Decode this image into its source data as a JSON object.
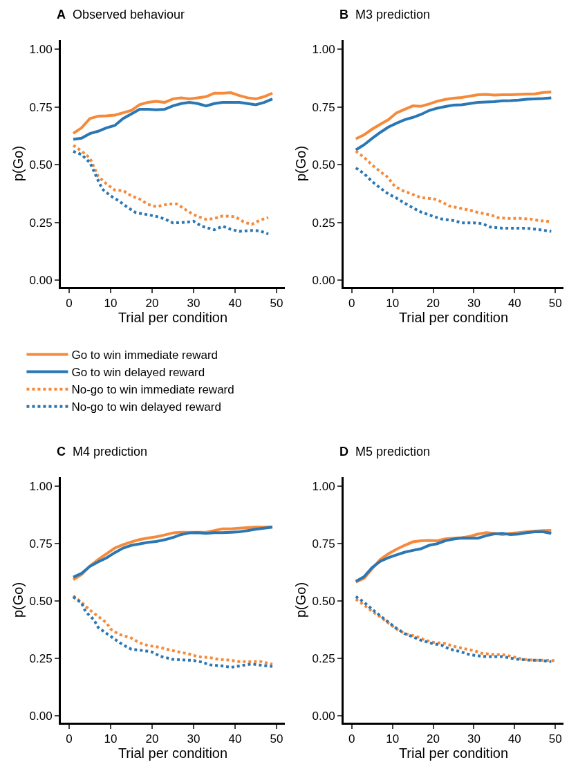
{
  "chart_data": [
    {
      "type": "line",
      "title": "A  Observed behaviour",
      "xlabel": "Trial per condition",
      "ylabel": "p(Go)",
      "xlim": [
        -2,
        52
      ],
      "ylim": [
        -0.03,
        1.04
      ],
      "xticks": [
        0,
        10,
        20,
        30,
        40,
        50
      ],
      "yticks": [
        {
          "value": 0,
          "label": "0.00"
        },
        {
          "value": 0.25,
          "label": "0.25"
        },
        {
          "value": 0.5,
          "label": "0.50"
        },
        {
          "value": 0.75,
          "label": "0.75"
        },
        {
          "value": 1,
          "label": "1.00"
        }
      ],
      "legend": "bottom",
      "marker": "none",
      "series": [
        {
          "name": "Go to win immediate reward",
          "color": "#f58a3a",
          "line_style": "solid",
          "x": [
            1,
            3,
            5,
            7,
            9,
            11,
            13,
            15,
            17,
            19,
            21,
            23,
            25,
            27,
            29,
            31,
            33,
            35,
            37,
            39,
            41,
            43,
            45,
            47,
            49
          ],
          "values": [
            0.636,
            0.66,
            0.7,
            0.71,
            0.712,
            0.715,
            0.725,
            0.735,
            0.76,
            0.77,
            0.775,
            0.77,
            0.785,
            0.79,
            0.785,
            0.79,
            0.795,
            0.81,
            0.81,
            0.812,
            0.8,
            0.79,
            0.785,
            0.795,
            0.81
          ]
        },
        {
          "name": "Go to win delayed reward",
          "color": "#2a77b4",
          "line_style": "solid",
          "x": [
            1,
            3,
            5,
            7,
            9,
            11,
            13,
            15,
            17,
            19,
            21,
            23,
            25,
            27,
            29,
            31,
            33,
            35,
            37,
            39,
            41,
            43,
            45,
            47,
            49
          ],
          "values": [
            0.61,
            0.615,
            0.635,
            0.645,
            0.66,
            0.67,
            0.7,
            0.72,
            0.74,
            0.74,
            0.738,
            0.74,
            0.755,
            0.765,
            0.77,
            0.765,
            0.755,
            0.765,
            0.77,
            0.77,
            0.77,
            0.765,
            0.76,
            0.77,
            0.785
          ]
        },
        {
          "name": "No-go to win immediate reward",
          "color": "#f58a3a",
          "line_style": "dotted",
          "x": [
            1,
            3,
            5,
            6,
            7,
            9,
            11,
            13,
            15,
            17,
            19,
            21,
            24,
            26,
            28,
            30,
            33,
            35,
            37,
            40,
            42,
            44,
            46,
            48
          ],
          "values": [
            0.584,
            0.559,
            0.529,
            0.489,
            0.449,
            0.417,
            0.39,
            0.388,
            0.365,
            0.351,
            0.328,
            0.318,
            0.33,
            0.33,
            0.306,
            0.283,
            0.263,
            0.267,
            0.278,
            0.275,
            0.253,
            0.241,
            0.26,
            0.271
          ]
        },
        {
          "name": "No-go to win delayed reward",
          "color": "#2a77b4",
          "line_style": "dotted",
          "x": [
            1,
            3,
            5,
            6,
            7,
            8,
            10,
            12,
            14,
            16,
            19,
            21,
            23,
            25,
            28,
            30,
            32,
            35,
            37,
            39,
            41,
            44,
            46,
            48
          ],
          "values": [
            0.558,
            0.544,
            0.509,
            0.471,
            0.431,
            0.394,
            0.365,
            0.343,
            0.316,
            0.293,
            0.283,
            0.276,
            0.265,
            0.248,
            0.25,
            0.255,
            0.233,
            0.218,
            0.233,
            0.22,
            0.211,
            0.215,
            0.213,
            0.2
          ]
        }
      ]
    },
    {
      "type": "line",
      "title": "B  M3 prediction",
      "xlabel": "Trial per condition",
      "ylabel": "p(Go)",
      "xlim": [
        -2,
        52
      ],
      "ylim": [
        -0.03,
        1.04
      ],
      "xticks": [
        0,
        10,
        20,
        30,
        40,
        50
      ],
      "yticks": [
        {
          "value": 0,
          "label": "0.00"
        },
        {
          "value": 0.25,
          "label": "0.25"
        },
        {
          "value": 0.5,
          "label": "0.50"
        },
        {
          "value": 0.75,
          "label": "0.75"
        },
        {
          "value": 1,
          "label": "1.00"
        }
      ],
      "marker": "none",
      "series": [
        {
          "color": "#f58a3a",
          "line_style": "solid",
          "x": [
            1,
            3,
            5,
            7,
            9,
            11,
            13,
            15,
            17,
            19,
            21,
            23,
            25,
            27,
            29,
            31,
            33,
            35,
            37,
            39,
            41,
            43,
            45,
            47,
            49
          ],
          "values": [
            0.612,
            0.629,
            0.654,
            0.675,
            0.695,
            0.725,
            0.74,
            0.755,
            0.753,
            0.763,
            0.775,
            0.783,
            0.788,
            0.791,
            0.797,
            0.803,
            0.805,
            0.802,
            0.803,
            0.803,
            0.805,
            0.806,
            0.807,
            0.813,
            0.815
          ]
        },
        {
          "color": "#2a77b4",
          "line_style": "solid",
          "x": [
            1,
            3,
            5,
            7,
            9,
            11,
            13,
            15,
            17,
            19,
            21,
            23,
            25,
            27,
            29,
            31,
            33,
            35,
            37,
            39,
            41,
            43,
            45,
            47,
            49
          ],
          "values": [
            0.564,
            0.586,
            0.614,
            0.64,
            0.663,
            0.68,
            0.695,
            0.705,
            0.718,
            0.735,
            0.745,
            0.752,
            0.758,
            0.76,
            0.765,
            0.77,
            0.772,
            0.773,
            0.777,
            0.778,
            0.78,
            0.784,
            0.785,
            0.787,
            0.79
          ]
        },
        {
          "color": "#f58a3a",
          "line_style": "dotted",
          "x": [
            1,
            3,
            5,
            7,
            9,
            10,
            12,
            15,
            17,
            20,
            22,
            24,
            27,
            29,
            31,
            34,
            36,
            39,
            41,
            44,
            46,
            49
          ],
          "values": [
            0.559,
            0.532,
            0.499,
            0.47,
            0.444,
            0.416,
            0.391,
            0.371,
            0.357,
            0.353,
            0.34,
            0.321,
            0.31,
            0.303,
            0.293,
            0.283,
            0.27,
            0.267,
            0.268,
            0.264,
            0.258,
            0.253
          ]
        },
        {
          "color": "#2a77b4",
          "line_style": "dotted",
          "x": [
            1,
            3,
            5,
            7,
            9,
            11,
            13,
            15,
            17,
            20,
            22,
            25,
            27,
            30,
            32,
            34,
            37,
            39,
            42,
            44,
            47,
            49
          ],
          "values": [
            0.486,
            0.462,
            0.427,
            0.399,
            0.373,
            0.355,
            0.333,
            0.313,
            0.295,
            0.276,
            0.265,
            0.258,
            0.248,
            0.248,
            0.245,
            0.23,
            0.225,
            0.225,
            0.225,
            0.223,
            0.216,
            0.211
          ]
        }
      ]
    },
    {
      "type": "line",
      "title": "C  M4 prediction",
      "xlabel": "Trial per condition",
      "ylabel": "p(Go)",
      "xlim": [
        -2,
        52
      ],
      "ylim": [
        -0.03,
        1.04
      ],
      "xticks": [
        0,
        10,
        20,
        30,
        40,
        50
      ],
      "yticks": [
        {
          "value": 0,
          "label": "0.00"
        },
        {
          "value": 0.25,
          "label": "0.25"
        },
        {
          "value": 0.5,
          "label": "0.50"
        },
        {
          "value": 0.75,
          "label": "0.75"
        },
        {
          "value": 1,
          "label": "1.00"
        }
      ],
      "marker": "none",
      "series": [
        {
          "color": "#f58a3a",
          "line_style": "solid",
          "x": [
            1,
            3,
            5,
            7,
            9,
            11,
            13,
            15,
            17,
            19,
            21,
            23,
            25,
            27,
            29,
            31,
            33,
            35,
            37,
            39,
            41,
            43,
            45,
            47,
            49
          ],
          "values": [
            0.593,
            0.616,
            0.653,
            0.681,
            0.706,
            0.731,
            0.746,
            0.758,
            0.768,
            0.775,
            0.78,
            0.788,
            0.797,
            0.8,
            0.8,
            0.8,
            0.8,
            0.807,
            0.815,
            0.815,
            0.818,
            0.82,
            0.822,
            0.822,
            0.823
          ]
        },
        {
          "color": "#2a77b4",
          "line_style": "solid",
          "x": [
            1,
            3,
            5,
            7,
            9,
            11,
            13,
            15,
            17,
            19,
            21,
            23,
            25,
            27,
            29,
            31,
            33,
            35,
            37,
            39,
            41,
            43,
            45,
            47,
            49
          ],
          "values": [
            0.604,
            0.621,
            0.651,
            0.671,
            0.688,
            0.711,
            0.731,
            0.743,
            0.749,
            0.756,
            0.76,
            0.767,
            0.777,
            0.79,
            0.797,
            0.798,
            0.795,
            0.798,
            0.798,
            0.8,
            0.802,
            0.807,
            0.813,
            0.818,
            0.822
          ]
        },
        {
          "color": "#f58a3a",
          "line_style": "dotted",
          "x": [
            1,
            3,
            5,
            7,
            9,
            10,
            12,
            15,
            17,
            19,
            22,
            24,
            26,
            29,
            31,
            34,
            36,
            39,
            41,
            44,
            46,
            49
          ],
          "values": [
            0.523,
            0.494,
            0.461,
            0.433,
            0.406,
            0.378,
            0.355,
            0.339,
            0.318,
            0.306,
            0.298,
            0.288,
            0.28,
            0.269,
            0.258,
            0.253,
            0.246,
            0.242,
            0.236,
            0.236,
            0.237,
            0.225
          ]
        },
        {
          "color": "#2a77b4",
          "line_style": "dotted",
          "x": [
            1,
            3,
            4,
            6,
            7,
            9,
            11,
            13,
            15,
            18,
            20,
            22,
            25,
            27,
            30,
            32,
            34,
            37,
            39,
            42,
            44,
            47,
            49
          ],
          "values": [
            0.518,
            0.491,
            0.453,
            0.418,
            0.385,
            0.359,
            0.334,
            0.309,
            0.29,
            0.284,
            0.278,
            0.259,
            0.246,
            0.244,
            0.241,
            0.234,
            0.222,
            0.217,
            0.211,
            0.22,
            0.226,
            0.219,
            0.215
          ]
        }
      ]
    },
    {
      "type": "line",
      "title": "D  M5 prediction",
      "xlabel": "Trial per condition",
      "ylabel": "p(Go)",
      "xlim": [
        -2,
        52
      ],
      "ylim": [
        -0.03,
        1.04
      ],
      "xticks": [
        0,
        10,
        20,
        30,
        40,
        50
      ],
      "yticks": [
        {
          "value": 0,
          "label": "0.00"
        },
        {
          "value": 0.25,
          "label": "0.25"
        },
        {
          "value": 0.5,
          "label": "0.50"
        },
        {
          "value": 0.75,
          "label": "0.75"
        },
        {
          "value": 1,
          "label": "1.00"
        }
      ],
      "marker": "none",
      "series": [
        {
          "color": "#f58a3a",
          "line_style": "solid",
          "x": [
            1,
            3,
            5,
            7,
            9,
            11,
            13,
            15,
            17,
            19,
            21,
            23,
            25,
            27,
            29,
            31,
            33,
            35,
            37,
            39,
            41,
            43,
            45,
            47,
            49
          ],
          "values": [
            0.583,
            0.599,
            0.641,
            0.681,
            0.706,
            0.726,
            0.743,
            0.758,
            0.763,
            0.764,
            0.763,
            0.771,
            0.774,
            0.776,
            0.782,
            0.792,
            0.798,
            0.795,
            0.79,
            0.795,
            0.798,
            0.802,
            0.805,
            0.807,
            0.808
          ]
        },
        {
          "color": "#2a77b4",
          "line_style": "solid",
          "x": [
            1,
            3,
            5,
            7,
            9,
            11,
            13,
            15,
            17,
            19,
            21,
            23,
            25,
            27,
            29,
            31,
            33,
            35,
            37,
            39,
            41,
            43,
            45,
            47,
            49
          ],
          "values": [
            0.586,
            0.606,
            0.646,
            0.673,
            0.689,
            0.701,
            0.713,
            0.721,
            0.728,
            0.743,
            0.75,
            0.763,
            0.77,
            0.775,
            0.774,
            0.774,
            0.785,
            0.793,
            0.795,
            0.79,
            0.792,
            0.798,
            0.802,
            0.802,
            0.795
          ]
        },
        {
          "color": "#f58a3a",
          "line_style": "dotted",
          "x": [
            1,
            3,
            5,
            7,
            9,
            11,
            13,
            16,
            18,
            20,
            23,
            25,
            28,
            30,
            32,
            35,
            37,
            40,
            42,
            45,
            47,
            50
          ],
          "values": [
            0.508,
            0.483,
            0.455,
            0.431,
            0.404,
            0.378,
            0.359,
            0.345,
            0.33,
            0.32,
            0.315,
            0.303,
            0.291,
            0.284,
            0.272,
            0.267,
            0.267,
            0.256,
            0.246,
            0.242,
            0.242,
            0.24
          ]
        },
        {
          "color": "#2a77b4",
          "line_style": "dotted",
          "x": [
            1,
            3,
            5,
            7,
            9,
            11,
            13,
            15,
            17,
            20,
            22,
            24,
            27,
            29,
            32,
            34,
            37,
            39,
            41,
            44,
            46,
            49
          ],
          "values": [
            0.52,
            0.495,
            0.464,
            0.436,
            0.408,
            0.381,
            0.358,
            0.344,
            0.329,
            0.314,
            0.308,
            0.291,
            0.278,
            0.266,
            0.259,
            0.258,
            0.258,
            0.251,
            0.246,
            0.242,
            0.242,
            0.236
          ]
        }
      ]
    }
  ]
}
